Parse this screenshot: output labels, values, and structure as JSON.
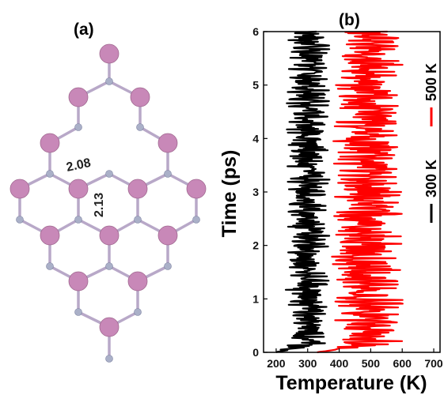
{
  "panel_a": {
    "label": "(a)",
    "bond_label_1": "2.08",
    "bond_label_2": "2.13",
    "colors": {
      "large_atom": "#c888b8",
      "small_atom": "#aab0c8",
      "bond": "#b8a8c8"
    }
  },
  "panel_b": {
    "label": "(b)"
  },
  "chart_data": {
    "type": "line",
    "xlabel": "Temperature (K)",
    "ylabel": "Time (ps)",
    "xlim": [
      160,
      720
    ],
    "ylim": [
      0,
      6
    ],
    "xticks": [
      200,
      300,
      400,
      500,
      600,
      700
    ],
    "yticks": [
      0,
      1,
      2,
      3,
      4,
      5,
      6
    ],
    "legend_position": "right, rotated vertical",
    "series": [
      {
        "name": "300 K",
        "color": "#000000",
        "mean": 300,
        "amplitude": 52,
        "start_temperature": 200
      },
      {
        "name": "500 K",
        "color": "#ff0000",
        "mean": 490,
        "amplitude": 85,
        "start_temperature": 330
      }
    ]
  }
}
